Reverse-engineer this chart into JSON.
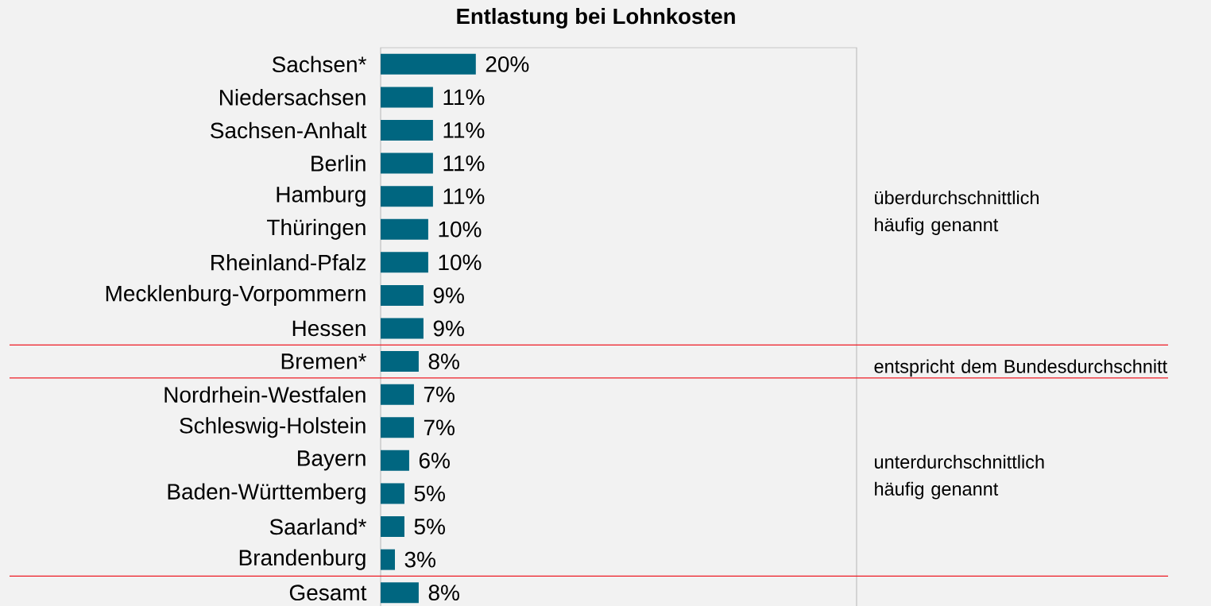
{
  "chart_data": {
    "type": "bar",
    "orientation": "horizontal",
    "title": "Entlastung bei Lohnkosten",
    "categories": [
      "Sachsen*",
      "Niedersachsen",
      "Sachsen-Anhalt",
      "Berlin",
      "Hamburg",
      "Thüringen",
      "Rheinland-Pfalz",
      "Mecklenburg-Vorpommern",
      "Hessen",
      "Bremen*",
      "Nordrhein-Westfalen",
      "Schleswig-Holstein",
      "Bayern",
      "Baden-Württemberg",
      "Saarland*",
      "Brandenburg",
      "Gesamt"
    ],
    "values": [
      20,
      11,
      11,
      11,
      11,
      10,
      10,
      9,
      9,
      8,
      7,
      7,
      6,
      5,
      5,
      3,
      8
    ],
    "value_labels": [
      "20%",
      "11%",
      "11%",
      "11%",
      "11%",
      "10%",
      "10%",
      "9%",
      "9%",
      "8%",
      "7%",
      "7%",
      "6%",
      "5%",
      "5%",
      "3%",
      "8%"
    ],
    "color": "#006680",
    "xlim": [
      0,
      100
    ],
    "tick_labels": "y",
    "annotations": [
      "überdurchschnittlich häufig genannt",
      "entspricht dem Bundesdurchschnitt",
      "unterdurchschnittlich häufig genannt"
    ]
  }
}
